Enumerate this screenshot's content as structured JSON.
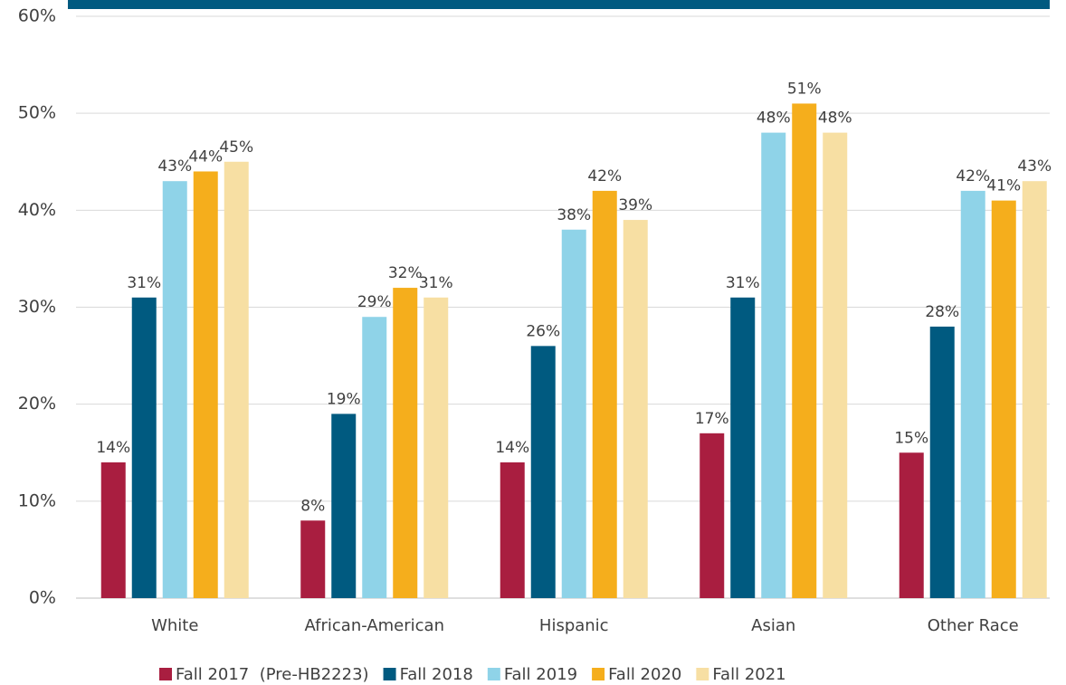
{
  "chart_data": {
    "type": "bar",
    "categories": [
      "White",
      "African-American",
      "Hispanic",
      "Asian",
      "Other Race"
    ],
    "series": [
      {
        "name": "Fall 2017  (Pre-HB2223)",
        "color": "#a91e40",
        "values": [
          14,
          8,
          14,
          17,
          15
        ],
        "value_labels": [
          "14%",
          "8%",
          "14%",
          "17%",
          "15%"
        ]
      },
      {
        "name": "Fall 2018",
        "color": "#005a80",
        "values": [
          31,
          19,
          26,
          31,
          28
        ],
        "value_labels": [
          "31%",
          "19%",
          "26%",
          "31%",
          "28%"
        ]
      },
      {
        "name": "Fall 2019",
        "color": "#8fd3e8",
        "values": [
          43,
          29,
          38,
          48,
          42
        ],
        "value_labels": [
          "43%",
          "29%",
          "38%",
          "48%",
          "42%"
        ]
      },
      {
        "name": "Fall 2020",
        "color": "#f5ae1c",
        "values": [
          44,
          32,
          42,
          51,
          41
        ],
        "value_labels": [
          "44%",
          "32%",
          "42%",
          "51%",
          "41%"
        ]
      },
      {
        "name": "Fall 2021",
        "color": "#f7dfa3",
        "values": [
          45,
          31,
          39,
          48,
          43
        ],
        "value_labels": [
          "45%",
          "31%",
          "39%",
          "48%",
          "43%"
        ]
      }
    ],
    "ylim": [
      0,
      60
    ],
    "yticks": [
      {
        "value": 0,
        "label": "0%"
      },
      {
        "value": 10,
        "label": "10%"
      },
      {
        "value": 20,
        "label": "20%"
      },
      {
        "value": 30,
        "label": "30%"
      },
      {
        "value": 40,
        "label": "40%"
      },
      {
        "value": 50,
        "label": "50%"
      },
      {
        "value": 60,
        "label": "60%"
      }
    ],
    "grid": true,
    "legend": "bottom"
  }
}
